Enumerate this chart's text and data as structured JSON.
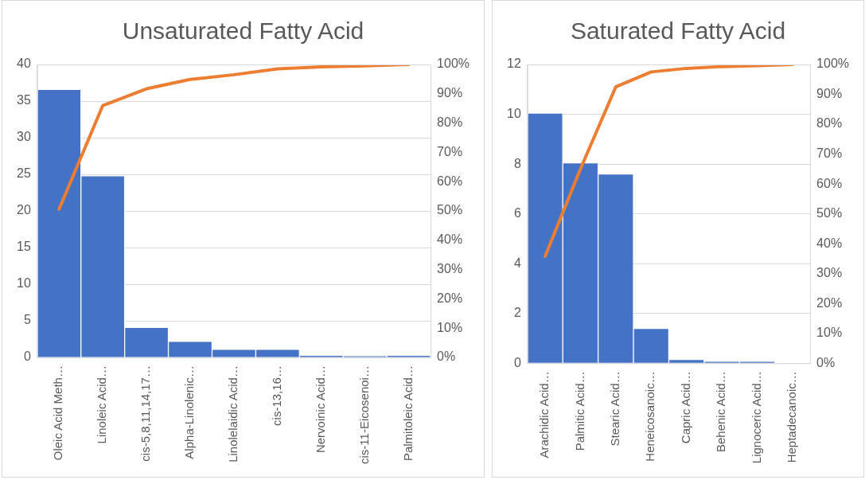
{
  "chart_data": [
    {
      "type": "bar",
      "title": "Unsaturated Fatty Acid",
      "categories": [
        "Oleic Acid Meth…",
        "Linoleic Acid…",
        "cis-5,8,11,14,17…",
        "Alpha-Linolenic…",
        "Linolelaidic Acid…",
        "cis-13,16…",
        "Nervoinic Acid…",
        "cis-11-Eicosenoi…",
        "Palmitoleic Acid…"
      ],
      "series": [
        {
          "color": "#4472c4",
          "values": [
            36.6,
            24.8,
            4.1,
            2.2,
            1.1,
            1.1,
            0.3,
            0.2,
            0.3
          ]
        },
        {
          "type": "line",
          "axis": "y2",
          "color": "#ed7d31",
          "values": [
            50.6,
            86,
            91.7,
            94.9,
            96.5,
            98.5,
            99.2,
            99.5,
            100
          ]
        }
      ],
      "ylim": [
        0,
        40
      ],
      "yticks": [
        0,
        5,
        10,
        15,
        20,
        25,
        30,
        35,
        40
      ],
      "y2lim": [
        0,
        100
      ],
      "y2ticks": [
        {
          "value": 0,
          "label": "0%"
        },
        {
          "value": 10,
          "label": "10%"
        },
        {
          "value": 20,
          "label": "20%"
        },
        {
          "value": 30,
          "label": "30%"
        },
        {
          "value": 40,
          "label": "40%"
        },
        {
          "value": 50,
          "label": "50%"
        },
        {
          "value": 60,
          "label": "60%"
        },
        {
          "value": 70,
          "label": "70%"
        },
        {
          "value": 80,
          "label": "80%"
        },
        {
          "value": 90,
          "label": "90%"
        },
        {
          "value": 100,
          "label": "100%"
        }
      ],
      "grid": "y",
      "marker": "none"
    },
    {
      "type": "bar",
      "title": "Saturated Fatty Acid",
      "categories": [
        "Arachidic Acid…",
        "Palmitic Acid…",
        "Stearic Acid…",
        "Heneicosanoic…",
        "Capric Acid…",
        "Behenic Acid…",
        "Lignoceric Acid…",
        "Heptadecanoic…"
      ],
      "series": [
        {
          "color": "#4472c4",
          "values": [
            10.05,
            8.05,
            7.6,
            1.4,
            0.15,
            0.08,
            0.08,
            0
          ]
        },
        {
          "type": "line",
          "axis": "y2",
          "color": "#ed7d31",
          "values": [
            35.8,
            65,
            92.5,
            97.5,
            98.7,
            99.3,
            99.6,
            100
          ]
        }
      ],
      "ylim": [
        0,
        12
      ],
      "yticks": [
        0,
        2,
        4,
        6,
        8,
        10,
        12
      ],
      "y2lim": [
        0,
        100
      ],
      "y2ticks": [
        {
          "value": 0,
          "label": "0%"
        },
        {
          "value": 10,
          "label": "10%"
        },
        {
          "value": 20,
          "label": "20%"
        },
        {
          "value": 30,
          "label": "30%"
        },
        {
          "value": 40,
          "label": "40%"
        },
        {
          "value": 50,
          "label": "50%"
        },
        {
          "value": 60,
          "label": "60%"
        },
        {
          "value": 70,
          "label": "70%"
        },
        {
          "value": 80,
          "label": "80%"
        },
        {
          "value": 90,
          "label": "90%"
        },
        {
          "value": 100,
          "label": "100%"
        }
      ],
      "grid": "y",
      "marker": "none"
    }
  ]
}
